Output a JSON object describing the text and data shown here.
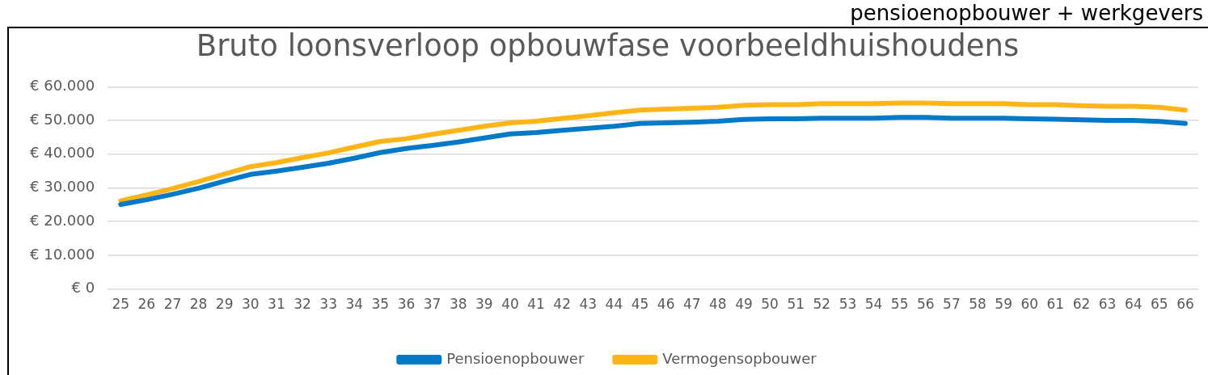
{
  "chart_data": {
    "type": "line",
    "title": "Bruto loonsverloop opbouwfase voorbeeldhuishoudens",
    "annotations": [
      "pensioenopbouwer + werkgevers"
    ],
    "categories": [
      "25",
      "26",
      "27",
      "28",
      "29",
      "30",
      "31",
      "32",
      "33",
      "34",
      "35",
      "36",
      "37",
      "38",
      "39",
      "40",
      "41",
      "42",
      "43",
      "44",
      "45",
      "46",
      "47",
      "48",
      "49",
      "50",
      "51",
      "52",
      "53",
      "54",
      "55",
      "56",
      "57",
      "58",
      "59",
      "60",
      "61",
      "62",
      "63",
      "64",
      "65",
      "66"
    ],
    "series": [
      {
        "name": "Pensioenopbouwer",
        "color": "#0079c8",
        "values": [
          25100,
          26500,
          28100,
          29900,
          32000,
          34000,
          35000,
          36100,
          37300,
          38800,
          40500,
          41700,
          42600,
          43600,
          44800,
          46000,
          46400,
          47100,
          47700,
          48300,
          49100,
          49300,
          49500,
          49800,
          50300,
          50500,
          50500,
          50700,
          50700,
          50700,
          50900,
          50900,
          50700,
          50700,
          50700,
          50500,
          50400,
          50200,
          50000,
          50000,
          49700,
          49100
        ]
      },
      {
        "name": "Vermogensopbouwer",
        "color": "#ffb418",
        "values": [
          26200,
          27900,
          29800,
          31900,
          34100,
          36300,
          37500,
          39000,
          40400,
          42100,
          43800,
          44600,
          45900,
          47100,
          48300,
          49300,
          49800,
          50600,
          51400,
          52300,
          53100,
          53400,
          53600,
          53900,
          54500,
          54700,
          54700,
          55000,
          55000,
          55000,
          55200,
          55200,
          55000,
          55000,
          55000,
          54700,
          54700,
          54400,
          54200,
          54200,
          53900,
          53100
        ]
      }
    ],
    "ylim": [
      0,
      60000
    ],
    "yticks": [
      {
        "value": 0,
        "label": "€ 0"
      },
      {
        "value": 10000,
        "label": "€ 10.000"
      },
      {
        "value": 20000,
        "label": "€ 20.000"
      },
      {
        "value": 30000,
        "label": "€ 30.000"
      },
      {
        "value": 40000,
        "label": "€ 40.000"
      },
      {
        "value": 50000,
        "label": "€ 50.000"
      },
      {
        "value": 60000,
        "label": "€ 60.000"
      }
    ],
    "grid": "y",
    "legend": "bottom"
  }
}
